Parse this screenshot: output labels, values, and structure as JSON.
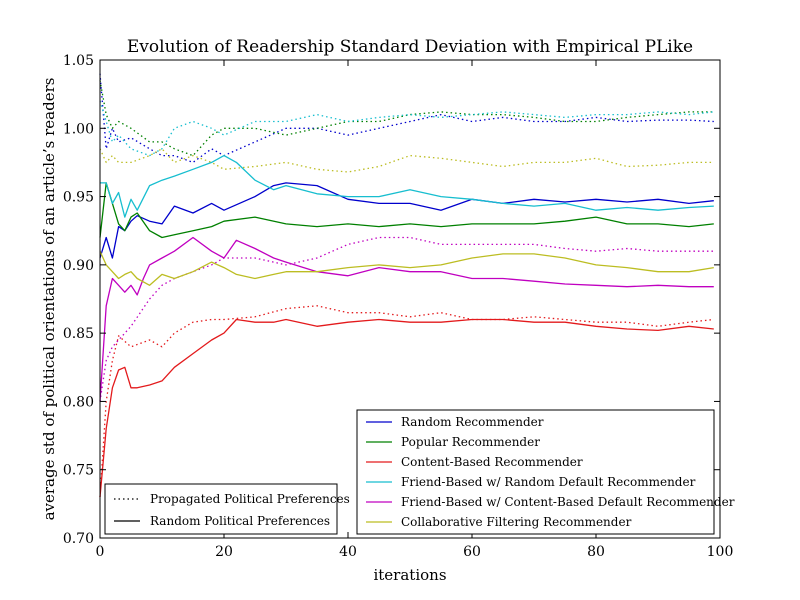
{
  "chart_data": {
    "type": "line",
    "title": "Evolution of Readership Standard Deviation with Empirical PLike",
    "xlabel": "iterations",
    "ylabel": "average std of political orientations of an article’s readers",
    "xlim": [
      0,
      100
    ],
    "ylim": [
      0.7,
      1.05
    ],
    "xticks": [
      "0",
      "20",
      "40",
      "60",
      "80",
      "100"
    ],
    "yticks": [
      "0.70",
      "0.75",
      "0.80",
      "0.85",
      "0.90",
      "0.95",
      "1.00",
      "1.05"
    ],
    "grid": false,
    "legend_styles": {
      "placement": "lower-left",
      "entries": [
        {
          "label": "Propagated Political Preferences",
          "dash": "dotted"
        },
        {
          "label": "Random Political Preferences",
          "dash": "solid"
        }
      ]
    },
    "legend_series": {
      "placement": "lower-right",
      "entries": [
        {
          "label": "Random Recommender",
          "color": "#0000cc"
        },
        {
          "label": "Popular Recommender",
          "color": "#008000"
        },
        {
          "label": "Content-Based Recommender",
          "color": "#e31a1c"
        },
        {
          "label": "Friend-Based w/ Random Default Recommender",
          "color": "#17becf"
        },
        {
          "label": "Friend-Based w/ Content-Based Default Recommender",
          "color": "#c000c0"
        },
        {
          "label": "Collaborative Filtering Recommender",
          "color": "#bcbd22"
        }
      ]
    },
    "series": [
      {
        "color": "#0000cc",
        "dash": "solid",
        "x": [
          0,
          1,
          2,
          3,
          4,
          5,
          6,
          8,
          10,
          12,
          15,
          18,
          20,
          25,
          28,
          30,
          35,
          40,
          45,
          50,
          55,
          60,
          65,
          70,
          75,
          80,
          85,
          90,
          95,
          99
        ],
        "y": [
          0.905,
          0.92,
          0.905,
          0.928,
          0.925,
          0.932,
          0.936,
          0.932,
          0.93,
          0.943,
          0.938,
          0.945,
          0.94,
          0.95,
          0.958,
          0.96,
          0.958,
          0.948,
          0.945,
          0.945,
          0.94,
          0.948,
          0.945,
          0.948,
          0.946,
          0.948,
          0.946,
          0.948,
          0.945,
          0.947
        ]
      },
      {
        "color": "#0000cc",
        "dash": "dotted",
        "x": [
          0,
          1,
          2,
          3,
          5,
          8,
          10,
          12,
          15,
          18,
          20,
          25,
          30,
          35,
          40,
          45,
          50,
          55,
          60,
          65,
          70,
          75,
          80,
          85,
          90,
          95,
          99
        ],
        "y": [
          1.04,
          0.985,
          1.0,
          0.99,
          0.993,
          0.985,
          0.98,
          0.98,
          0.975,
          0.985,
          0.98,
          0.99,
          1.0,
          1.0,
          0.995,
          1.0,
          1.005,
          1.01,
          1.005,
          1.008,
          1.005,
          1.005,
          1.008,
          1.005,
          1.006,
          1.006,
          1.005
        ]
      },
      {
        "color": "#008000",
        "dash": "solid",
        "x": [
          0,
          1,
          2,
          3,
          4,
          5,
          6,
          8,
          10,
          12,
          15,
          18,
          20,
          25,
          30,
          35,
          40,
          45,
          50,
          55,
          60,
          65,
          70,
          75,
          80,
          85,
          90,
          95,
          99
        ],
        "y": [
          0.92,
          0.96,
          0.945,
          0.93,
          0.925,
          0.935,
          0.938,
          0.925,
          0.92,
          0.922,
          0.925,
          0.928,
          0.932,
          0.935,
          0.93,
          0.928,
          0.93,
          0.928,
          0.93,
          0.928,
          0.93,
          0.93,
          0.93,
          0.932,
          0.935,
          0.93,
          0.93,
          0.928,
          0.93
        ]
      },
      {
        "color": "#008000",
        "dash": "dotted",
        "x": [
          0,
          1,
          2,
          3,
          5,
          8,
          10,
          12,
          15,
          18,
          20,
          25,
          30,
          35,
          40,
          45,
          50,
          55,
          60,
          65,
          70,
          75,
          80,
          85,
          90,
          95,
          99
        ],
        "y": [
          1.035,
          1.01,
          1.0,
          1.005,
          1.0,
          0.99,
          0.99,
          0.985,
          0.98,
          0.995,
          1.0,
          1.0,
          0.995,
          1.0,
          1.005,
          1.005,
          1.01,
          1.012,
          1.01,
          1.01,
          1.008,
          1.005,
          1.005,
          1.008,
          1.01,
          1.012,
          1.012
        ]
      },
      {
        "color": "#e31a1c",
        "dash": "solid",
        "x": [
          0,
          1,
          2,
          3,
          4,
          5,
          6,
          8,
          10,
          12,
          15,
          18,
          20,
          22,
          25,
          28,
          30,
          35,
          40,
          45,
          50,
          55,
          60,
          65,
          70,
          75,
          80,
          85,
          90,
          95,
          99
        ],
        "y": [
          0.73,
          0.78,
          0.81,
          0.823,
          0.825,
          0.81,
          0.81,
          0.812,
          0.815,
          0.825,
          0.835,
          0.845,
          0.85,
          0.86,
          0.858,
          0.858,
          0.86,
          0.855,
          0.858,
          0.86,
          0.858,
          0.858,
          0.86,
          0.86,
          0.858,
          0.858,
          0.855,
          0.853,
          0.852,
          0.855,
          0.853
        ]
      },
      {
        "color": "#e31a1c",
        "dash": "dotted",
        "x": [
          0,
          1,
          2,
          3,
          5,
          8,
          10,
          12,
          15,
          18,
          20,
          25,
          30,
          35,
          40,
          45,
          50,
          55,
          60,
          65,
          70,
          75,
          80,
          85,
          90,
          95,
          99
        ],
        "y": [
          0.73,
          0.8,
          0.83,
          0.848,
          0.84,
          0.845,
          0.84,
          0.85,
          0.858,
          0.86,
          0.86,
          0.862,
          0.868,
          0.87,
          0.865,
          0.865,
          0.862,
          0.865,
          0.86,
          0.86,
          0.862,
          0.86,
          0.858,
          0.858,
          0.855,
          0.858,
          0.86
        ]
      },
      {
        "color": "#17becf",
        "dash": "solid",
        "x": [
          0,
          1,
          2,
          3,
          4,
          5,
          6,
          8,
          10,
          12,
          15,
          18,
          20,
          22,
          25,
          28,
          30,
          35,
          40,
          45,
          50,
          55,
          60,
          65,
          70,
          75,
          80,
          85,
          90,
          95,
          99
        ],
        "y": [
          0.96,
          0.96,
          0.945,
          0.953,
          0.935,
          0.948,
          0.94,
          0.958,
          0.962,
          0.965,
          0.97,
          0.975,
          0.98,
          0.975,
          0.962,
          0.955,
          0.958,
          0.952,
          0.95,
          0.95,
          0.955,
          0.95,
          0.948,
          0.945,
          0.943,
          0.945,
          0.94,
          0.942,
          0.94,
          0.942,
          0.943
        ]
      },
      {
        "color": "#17becf",
        "dash": "dotted",
        "x": [
          0,
          1,
          2,
          3,
          5,
          8,
          10,
          12,
          15,
          18,
          20,
          25,
          30,
          35,
          40,
          45,
          50,
          55,
          60,
          65,
          70,
          75,
          80,
          85,
          90,
          95,
          99
        ],
        "y": [
          1.02,
          1.005,
          0.99,
          0.995,
          0.985,
          0.98,
          0.985,
          1.0,
          1.005,
          1.0,
          0.995,
          1.005,
          1.005,
          1.01,
          1.005,
          1.008,
          1.01,
          1.008,
          1.01,
          1.012,
          1.01,
          1.008,
          1.01,
          1.01,
          1.012,
          1.01,
          1.012
        ]
      },
      {
        "color": "#c000c0",
        "dash": "solid",
        "x": [
          0,
          1,
          2,
          3,
          4,
          5,
          6,
          7,
          8,
          10,
          12,
          15,
          18,
          20,
          22,
          25,
          28,
          30,
          35,
          40,
          45,
          50,
          55,
          60,
          65,
          70,
          75,
          80,
          85,
          90,
          95,
          99
        ],
        "y": [
          0.8,
          0.87,
          0.89,
          0.885,
          0.88,
          0.885,
          0.878,
          0.89,
          0.9,
          0.905,
          0.91,
          0.92,
          0.91,
          0.905,
          0.918,
          0.912,
          0.905,
          0.902,
          0.895,
          0.892,
          0.898,
          0.895,
          0.895,
          0.89,
          0.89,
          0.888,
          0.886,
          0.885,
          0.884,
          0.885,
          0.884,
          0.884
        ]
      },
      {
        "color": "#c000c0",
        "dash": "dotted",
        "x": [
          0,
          1,
          2,
          3,
          5,
          8,
          10,
          12,
          15,
          18,
          20,
          25,
          30,
          35,
          40,
          45,
          50,
          55,
          60,
          65,
          70,
          75,
          80,
          85,
          90,
          95,
          99
        ],
        "y": [
          0.8,
          0.83,
          0.84,
          0.845,
          0.855,
          0.875,
          0.885,
          0.89,
          0.895,
          0.9,
          0.905,
          0.905,
          0.9,
          0.905,
          0.915,
          0.92,
          0.92,
          0.915,
          0.915,
          0.915,
          0.915,
          0.912,
          0.91,
          0.912,
          0.91,
          0.91,
          0.91
        ]
      },
      {
        "color": "#bcbd22",
        "dash": "solid",
        "x": [
          0,
          1,
          2,
          3,
          4,
          5,
          6,
          8,
          10,
          12,
          15,
          18,
          20,
          22,
          25,
          28,
          30,
          35,
          40,
          45,
          50,
          55,
          60,
          65,
          70,
          75,
          80,
          85,
          90,
          95,
          99
        ],
        "y": [
          0.91,
          0.9,
          0.895,
          0.89,
          0.893,
          0.895,
          0.89,
          0.885,
          0.893,
          0.89,
          0.895,
          0.902,
          0.898,
          0.893,
          0.89,
          0.893,
          0.895,
          0.895,
          0.898,
          0.9,
          0.898,
          0.9,
          0.905,
          0.908,
          0.908,
          0.905,
          0.9,
          0.898,
          0.895,
          0.895,
          0.898
        ]
      },
      {
        "color": "#bcbd22",
        "dash": "dotted",
        "x": [
          0,
          1,
          2,
          3,
          5,
          8,
          10,
          12,
          15,
          18,
          20,
          25,
          30,
          35,
          40,
          45,
          50,
          55,
          60,
          65,
          70,
          75,
          80,
          85,
          90,
          95,
          99
        ],
        "y": [
          0.985,
          0.975,
          0.98,
          0.975,
          0.975,
          0.98,
          0.985,
          0.975,
          0.98,
          0.975,
          0.97,
          0.972,
          0.975,
          0.97,
          0.968,
          0.972,
          0.98,
          0.978,
          0.975,
          0.972,
          0.975,
          0.975,
          0.978,
          0.972,
          0.973,
          0.975,
          0.975
        ]
      }
    ]
  }
}
